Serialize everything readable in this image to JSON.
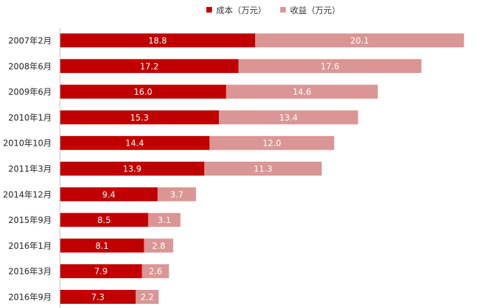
{
  "chart_data": {
    "type": "bar",
    "orientation": "horizontal",
    "stacked": true,
    "title": "",
    "xlabel": "",
    "ylabel": "",
    "legend_position": "top",
    "grid": false,
    "categories": [
      "2007年2月",
      "2008年6月",
      "2009年6月",
      "2010年1月",
      "2010年10月",
      "2011年3月",
      "2014年12月",
      "2015年9月",
      "2016年1月",
      "2016年3月",
      "2016年9月"
    ],
    "series": [
      {
        "name": "成本（万元）",
        "color": "#c00000",
        "values": [
          18.8,
          17.2,
          16.0,
          15.3,
          14.4,
          13.9,
          9.4,
          8.5,
          8.1,
          7.9,
          7.3
        ]
      },
      {
        "name": "收益（万元）",
        "color": "#d99694",
        "values": [
          20.1,
          17.6,
          14.6,
          13.4,
          12.0,
          11.3,
          3.7,
          3.1,
          2.8,
          2.6,
          2.2
        ]
      }
    ]
  }
}
